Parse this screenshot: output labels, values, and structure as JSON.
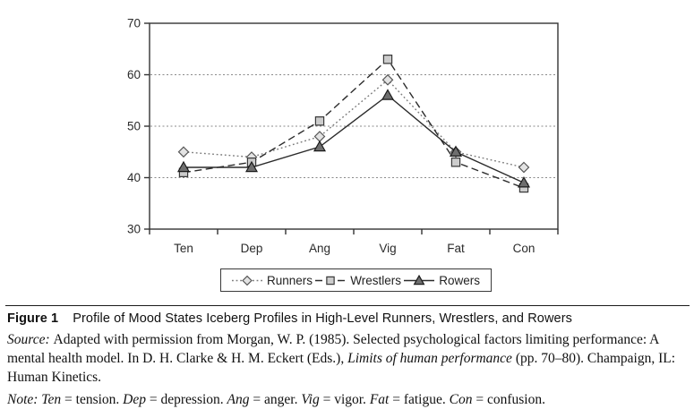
{
  "chart_data": {
    "type": "line",
    "title": "",
    "xlabel": "",
    "ylabel": "",
    "categories": [
      "Ten",
      "Dep",
      "Ang",
      "Vig",
      "Fat",
      "Con"
    ],
    "series": [
      {
        "name": "Runners",
        "values": [
          45,
          44,
          48,
          59,
          45,
          42
        ],
        "marker": "diamond",
        "line_style": "dotted",
        "line_color": "#7a7a7a",
        "marker_fill": "#e3e3e3",
        "marker_stroke": "#555555"
      },
      {
        "name": "Wrestlers",
        "values": [
          41,
          43,
          51,
          63,
          43,
          38
        ],
        "marker": "square",
        "line_style": "dashed",
        "line_color": "#2b2b2b",
        "marker_fill": "#cccccc",
        "marker_stroke": "#3a3a3a"
      },
      {
        "name": "Rowers",
        "values": [
          42,
          42,
          46,
          56,
          45,
          39
        ],
        "marker": "triangle",
        "line_style": "solid",
        "line_color": "#2b2b2b",
        "marker_fill": "#6e6e6e",
        "marker_stroke": "#1a1a1a"
      }
    ],
    "ylim": [
      30,
      70
    ],
    "yticks": [
      70,
      60,
      50,
      40,
      30
    ],
    "gridlines": [
      60,
      50,
      40
    ],
    "grid": "horizontal-dotted",
    "legend_position": "bottom-center",
    "axis_color": "#333333",
    "gridline_color": "#8a8a8a"
  },
  "caption": {
    "figure_label": "Figure 1",
    "figure_title": "Profile of Mood States Iceberg Profiles in High-Level Runners, Wrestlers, and Rowers",
    "source_segments": [
      {
        "text": "Source: ",
        "italic": true
      },
      {
        "text": "Adapted with permission from Morgan, W. P. (1985). Selected psychological factors limiting performance: A mental health model. In D. H. Clarke & H. M. Eckert (Eds.), ",
        "italic": false
      },
      {
        "text": "Limits of human performance",
        "italic": true
      },
      {
        "text": " (pp. 70–80). Champaign, IL: Human Kinetics.",
        "italic": false
      }
    ],
    "note_segments": [
      {
        "text": "Note: Ten",
        "italic": true
      },
      {
        "text": " = tension. ",
        "italic": false
      },
      {
        "text": "Dep",
        "italic": true
      },
      {
        "text": " = depression. ",
        "italic": false
      },
      {
        "text": "Ang",
        "italic": true
      },
      {
        "text": " = anger. ",
        "italic": false
      },
      {
        "text": "Vig",
        "italic": true
      },
      {
        "text": " = vigor. ",
        "italic": false
      },
      {
        "text": "Fat",
        "italic": true
      },
      {
        "text": " = fatigue. ",
        "italic": false
      },
      {
        "text": "Con",
        "italic": true
      },
      {
        "text": " = confusion.",
        "italic": false
      }
    ]
  }
}
